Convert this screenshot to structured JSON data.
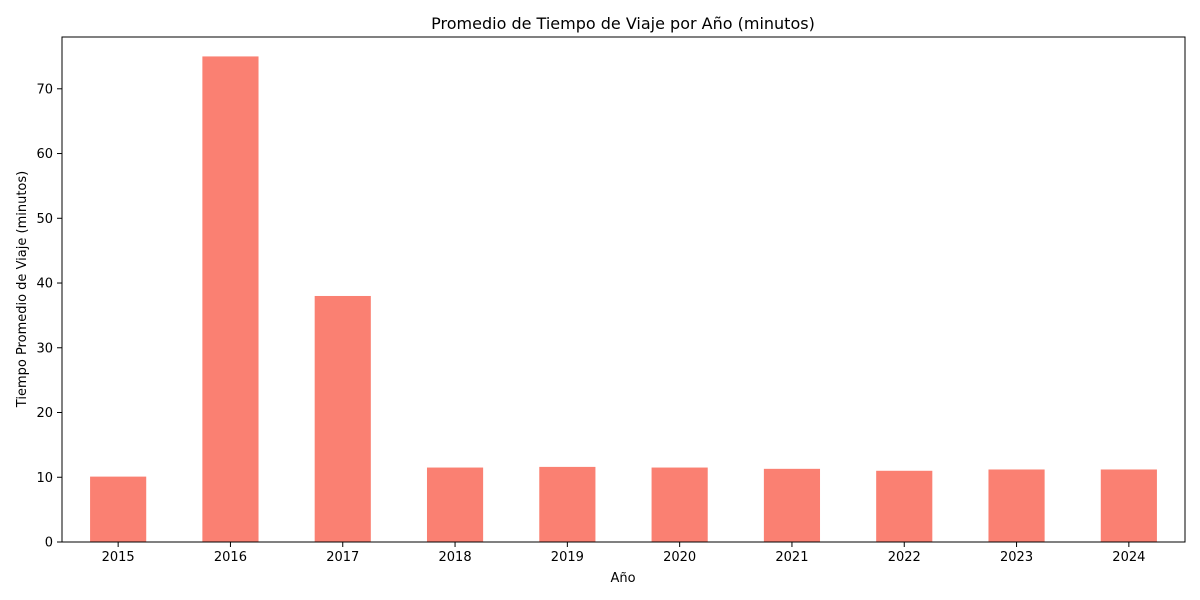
{
  "chart_data": {
    "type": "bar",
    "title": "Promedio de Tiempo de Viaje por Año (minutos)",
    "xlabel": "Año",
    "ylabel": "Tiempo Promedio de Viaje (minutos)",
    "categories": [
      "2015",
      "2016",
      "2017",
      "2018",
      "2019",
      "2020",
      "2021",
      "2022",
      "2023",
      "2024"
    ],
    "values": [
      10.1,
      75.0,
      38.0,
      11.5,
      11.6,
      11.5,
      11.3,
      11.0,
      11.2,
      11.2
    ],
    "ylim": [
      0,
      78
    ],
    "yticks": [
      0,
      10,
      20,
      30,
      40,
      50,
      60,
      70
    ],
    "bar_color": "#fa8072",
    "grid": false,
    "legend": "none"
  }
}
